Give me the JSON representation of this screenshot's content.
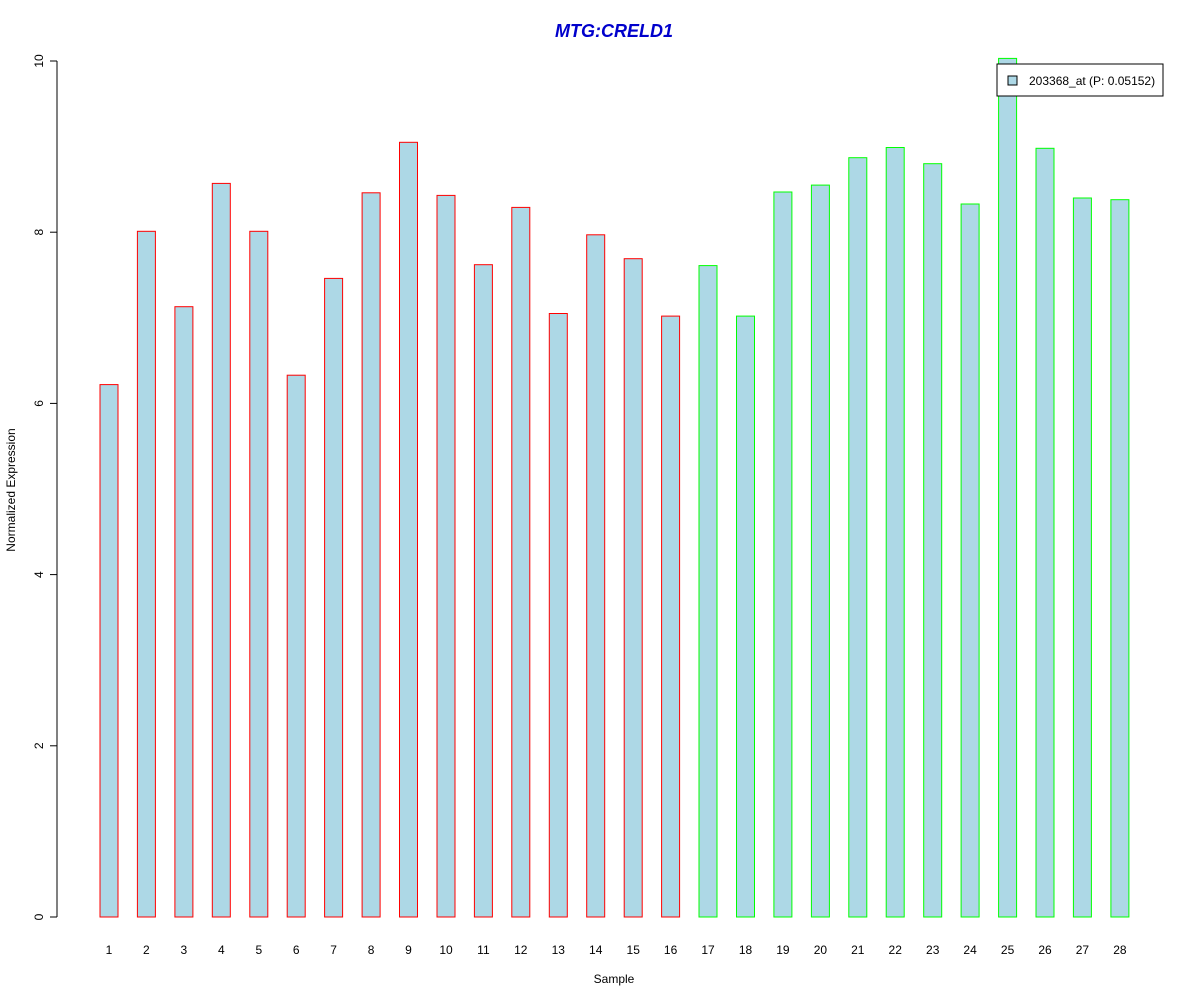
{
  "chart_data": {
    "type": "bar",
    "title": "MTG:CRELD1",
    "title_color": "#0000cc",
    "xlabel": "Sample",
    "ylabel": "Normalized Expression",
    "ylim": [
      0,
      10
    ],
    "yticks": [
      "0",
      "2",
      "4",
      "6",
      "8",
      "10"
    ],
    "categories": [
      "1",
      "2",
      "3",
      "4",
      "5",
      "6",
      "7",
      "8",
      "9",
      "10",
      "11",
      "12",
      "13",
      "14",
      "15",
      "16",
      "17",
      "18",
      "19",
      "20",
      "21",
      "22",
      "23",
      "24",
      "25",
      "26",
      "27",
      "28"
    ],
    "values": [
      6.22,
      8.01,
      7.13,
      8.57,
      8.01,
      6.33,
      7.46,
      8.46,
      9.05,
      8.43,
      7.62,
      8.29,
      7.05,
      7.97,
      7.69,
      7.02,
      7.61,
      7.02,
      8.47,
      8.55,
      8.87,
      8.99,
      8.8,
      8.33,
      10.03,
      8.98,
      8.4,
      8.38
    ],
    "bar_fill": "#add8e6",
    "group_border_colors": [
      "#ff0000",
      "#ff0000",
      "#ff0000",
      "#ff0000",
      "#ff0000",
      "#ff0000",
      "#ff0000",
      "#ff0000",
      "#ff0000",
      "#ff0000",
      "#ff0000",
      "#ff0000",
      "#ff0000",
      "#ff0000",
      "#ff0000",
      "#ff0000",
      "#00ff00",
      "#00ff00",
      "#00ff00",
      "#00ff00",
      "#00ff00",
      "#00ff00",
      "#00ff00",
      "#00ff00",
      "#00ff00",
      "#00ff00",
      "#00ff00",
      "#00ff00"
    ],
    "legend": {
      "label": "203368_at (P: 0.05152)",
      "placement": "top-right",
      "fill": "#add8e6"
    },
    "grid": false
  }
}
